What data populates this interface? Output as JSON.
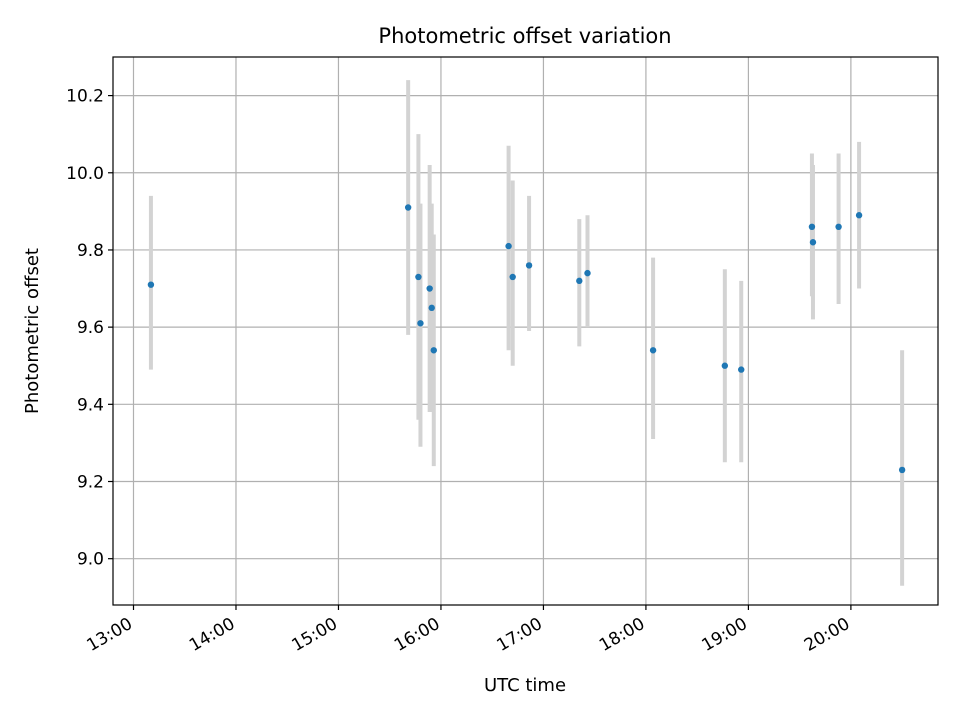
{
  "chart_data": {
    "type": "scatter",
    "title": "Photometric offset variation",
    "xlabel": "UTC time",
    "ylabel": "Photometric offset",
    "x_unit": "hours UTC",
    "xlim": [
      12.8,
      20.85
    ],
    "ylim": [
      8.88,
      10.3
    ],
    "x_ticks": [
      13,
      14,
      15,
      16,
      17,
      18,
      19,
      20
    ],
    "x_tick_labels": [
      "13:00",
      "14:00",
      "15:00",
      "16:00",
      "17:00",
      "18:00",
      "19:00",
      "20:00"
    ],
    "y_ticks": [
      9.0,
      9.2,
      9.4,
      9.6,
      9.8,
      10.0,
      10.2
    ],
    "y_tick_labels": [
      "9.0",
      "9.2",
      "9.4",
      "9.6",
      "9.8",
      "10.0",
      "10.2"
    ],
    "grid": true,
    "marker_color": "#1f77b4",
    "errorbar_color": "#d3d3d3",
    "points": [
      {
        "time": "13:10",
        "x": 13.17,
        "y": 9.71,
        "ylo": 9.49,
        "yhi": 9.94
      },
      {
        "time": "15:41",
        "x": 15.68,
        "y": 9.91,
        "ylo": 9.58,
        "yhi": 10.24
      },
      {
        "time": "15:47",
        "x": 15.78,
        "y": 9.73,
        "ylo": 9.36,
        "yhi": 10.1
      },
      {
        "time": "15:48",
        "x": 15.8,
        "y": 9.61,
        "ylo": 9.29,
        "yhi": 9.92
      },
      {
        "time": "15:53",
        "x": 15.89,
        "y": 9.7,
        "ylo": 9.38,
        "yhi": 10.02
      },
      {
        "time": "15:55",
        "x": 15.91,
        "y": 9.65,
        "ylo": 9.38,
        "yhi": 9.92
      },
      {
        "time": "15:56",
        "x": 15.93,
        "y": 9.54,
        "ylo": 9.24,
        "yhi": 9.84
      },
      {
        "time": "16:40",
        "x": 16.66,
        "y": 9.81,
        "ylo": 9.54,
        "yhi": 10.07
      },
      {
        "time": "16:42",
        "x": 16.7,
        "y": 9.73,
        "ylo": 9.5,
        "yhi": 9.98
      },
      {
        "time": "16:52",
        "x": 16.86,
        "y": 9.76,
        "ylo": 9.59,
        "yhi": 9.94
      },
      {
        "time": "17:21",
        "x": 17.35,
        "y": 9.72,
        "ylo": 9.55,
        "yhi": 9.88
      },
      {
        "time": "17:26",
        "x": 17.43,
        "y": 9.74,
        "ylo": 9.6,
        "yhi": 9.89
      },
      {
        "time": "18:04",
        "x": 18.07,
        "y": 9.54,
        "ylo": 9.31,
        "yhi": 9.78
      },
      {
        "time": "18:46",
        "x": 18.77,
        "y": 9.5,
        "ylo": 9.25,
        "yhi": 9.75
      },
      {
        "time": "18:56",
        "x": 18.93,
        "y": 9.49,
        "ylo": 9.25,
        "yhi": 9.72
      },
      {
        "time": "19:37",
        "x": 19.62,
        "y": 9.86,
        "ylo": 9.68,
        "yhi": 10.05
      },
      {
        "time": "19:38",
        "x": 19.63,
        "y": 9.82,
        "ylo": 9.62,
        "yhi": 10.02
      },
      {
        "time": "19:53",
        "x": 19.88,
        "y": 9.86,
        "ylo": 9.66,
        "yhi": 10.05
      },
      {
        "time": "20:05",
        "x": 20.08,
        "y": 9.89,
        "ylo": 9.7,
        "yhi": 10.08
      },
      {
        "time": "20:30",
        "x": 20.5,
        "y": 9.23,
        "ylo": 8.93,
        "yhi": 9.54
      }
    ]
  }
}
